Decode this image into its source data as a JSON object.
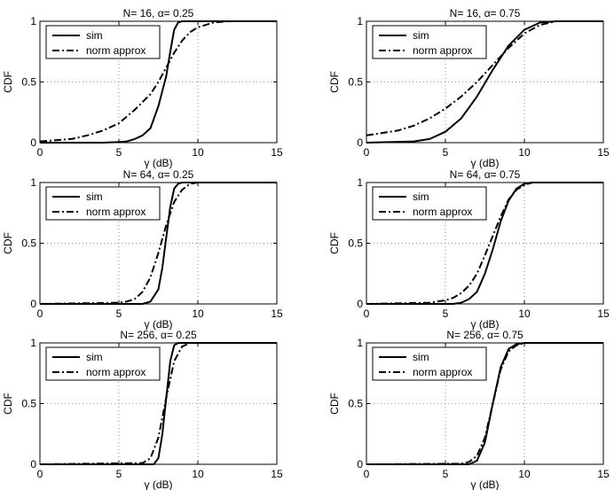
{
  "chart_data": [
    {
      "type": "line",
      "title_prefix": "N= ",
      "N": "16",
      "alpha_sep": ", ",
      "alpha_symbol": "α",
      "alpha_eq": "= ",
      "alpha": "0.25",
      "xlabel": "γ (dB)",
      "ylabel": "CDF",
      "xlim": [
        0,
        15
      ],
      "ylim": [
        0,
        1
      ],
      "xticks": [
        "0",
        "5",
        "10",
        "15"
      ],
      "yticks": [
        "0",
        "0.5",
        "1"
      ],
      "grid": true,
      "legend_position": "top-left",
      "series": [
        {
          "name": "sim",
          "style": "solid",
          "x": [
            0,
            4,
            5,
            5.5,
            6,
            6.5,
            7,
            7.5,
            8,
            8.25,
            8.5,
            8.75,
            9,
            15
          ],
          "y": [
            0,
            0,
            0.005,
            0.01,
            0.03,
            0.06,
            0.12,
            0.3,
            0.55,
            0.75,
            0.93,
            0.99,
            1,
            1
          ]
        },
        {
          "name": "norm approx",
          "style": "dashdot",
          "x": [
            0,
            2,
            3,
            4,
            5,
            6,
            7,
            7.5,
            8,
            8.5,
            9,
            9.5,
            10,
            11,
            12,
            15
          ],
          "y": [
            0.01,
            0.03,
            0.06,
            0.1,
            0.16,
            0.27,
            0.4,
            0.5,
            0.62,
            0.74,
            0.84,
            0.91,
            0.95,
            0.99,
            1,
            1
          ]
        }
      ]
    },
    {
      "type": "line",
      "title_prefix": "N= ",
      "N": "16",
      "alpha_sep": ", ",
      "alpha_symbol": "α",
      "alpha_eq": "= ",
      "alpha": "0.75",
      "xlabel": "γ (dB)",
      "ylabel": "CDF",
      "xlim": [
        0,
        15
      ],
      "ylim": [
        0,
        1
      ],
      "xticks": [
        "0",
        "5",
        "10",
        "15"
      ],
      "yticks": [
        "0",
        "0.5",
        "1"
      ],
      "grid": true,
      "legend_position": "top-left",
      "series": [
        {
          "name": "sim",
          "style": "solid",
          "x": [
            0,
            3,
            4,
            5,
            6,
            7,
            8,
            9,
            10,
            11,
            12,
            15
          ],
          "y": [
            0,
            0.01,
            0.03,
            0.09,
            0.2,
            0.38,
            0.6,
            0.8,
            0.93,
            0.99,
            1,
            1
          ]
        },
        {
          "name": "norm approx",
          "style": "dashdot",
          "x": [
            0,
            2,
            3,
            4,
            5,
            6,
            7,
            8,
            9,
            10,
            11,
            12,
            15
          ],
          "y": [
            0.06,
            0.1,
            0.14,
            0.2,
            0.28,
            0.38,
            0.5,
            0.64,
            0.78,
            0.9,
            0.97,
            1,
            1
          ]
        }
      ]
    },
    {
      "type": "line",
      "title_prefix": "N= ",
      "N": "64",
      "alpha_sep": ", ",
      "alpha_symbol": "α",
      "alpha_eq": "= ",
      "alpha": "0.25",
      "xlabel": "γ (dB)",
      "ylabel": "CDF",
      "xlim": [
        0,
        15
      ],
      "ylim": [
        0,
        1
      ],
      "xticks": [
        "0",
        "5",
        "10",
        "15"
      ],
      "yticks": [
        "0",
        "0.5",
        "1"
      ],
      "grid": true,
      "legend_position": "top-left",
      "series": [
        {
          "name": "sim",
          "style": "solid",
          "x": [
            0,
            6.5,
            7,
            7.5,
            7.75,
            8,
            8.25,
            8.5,
            8.75,
            9,
            15
          ],
          "y": [
            0,
            0,
            0.02,
            0.12,
            0.3,
            0.55,
            0.8,
            0.95,
            0.99,
            1,
            1
          ]
        },
        {
          "name": "norm approx",
          "style": "dashdot",
          "x": [
            0,
            5,
            5.5,
            6,
            6.5,
            7,
            7.5,
            8,
            8.5,
            9,
            9.5,
            10,
            15
          ],
          "y": [
            0,
            0.01,
            0.02,
            0.04,
            0.1,
            0.22,
            0.42,
            0.65,
            0.84,
            0.94,
            0.99,
            1,
            1
          ]
        }
      ]
    },
    {
      "type": "line",
      "title_prefix": "N= ",
      "N": "64",
      "alpha_sep": ", ",
      "alpha_symbol": "α",
      "alpha_eq": "= ",
      "alpha": "0.75",
      "xlabel": "γ (dB)",
      "ylabel": "CDF",
      "xlim": [
        0,
        15
      ],
      "ylim": [
        0,
        1
      ],
      "xticks": [
        "0",
        "5",
        "10",
        "15"
      ],
      "yticks": [
        "0",
        "0.5",
        "1"
      ],
      "grid": true,
      "legend_position": "top-left",
      "series": [
        {
          "name": "sim",
          "style": "solid",
          "x": [
            0,
            5.5,
            6,
            6.5,
            7,
            7.5,
            8,
            8.5,
            9,
            9.5,
            10,
            10.5,
            15
          ],
          "y": [
            0,
            0,
            0.01,
            0.04,
            0.1,
            0.25,
            0.45,
            0.68,
            0.85,
            0.95,
            0.99,
            1,
            1
          ]
        },
        {
          "name": "norm approx",
          "style": "dashdot",
          "x": [
            0,
            4,
            5,
            5.5,
            6,
            6.5,
            7,
            7.5,
            8,
            8.5,
            9,
            9.5,
            10,
            10.5,
            15
          ],
          "y": [
            0,
            0.01,
            0.03,
            0.05,
            0.09,
            0.15,
            0.25,
            0.4,
            0.56,
            0.72,
            0.86,
            0.94,
            0.98,
            1,
            1
          ]
        }
      ]
    },
    {
      "type": "line",
      "title_prefix": "N= ",
      "N": "256",
      "alpha_sep": ", ",
      "alpha_symbol": "α",
      "alpha_eq": "= ",
      "alpha": "0.25",
      "xlabel": "γ (dB)",
      "ylabel": "CDF",
      "xlim": [
        0,
        15
      ],
      "ylim": [
        0,
        1
      ],
      "xticks": [
        "0",
        "5",
        "10",
        "15"
      ],
      "yticks": [
        "0",
        "0.5",
        "1"
      ],
      "grid": true,
      "legend_position": "top-left",
      "series": [
        {
          "name": "sim",
          "style": "solid",
          "x": [
            0,
            7.2,
            7.5,
            7.75,
            8,
            8.25,
            8.5,
            8.75,
            15
          ],
          "y": [
            0,
            0,
            0.05,
            0.25,
            0.55,
            0.85,
            0.98,
            1,
            1
          ]
        },
        {
          "name": "norm approx",
          "style": "dashdot",
          "x": [
            0,
            6.5,
            7,
            7.5,
            8,
            8.5,
            9,
            9.5,
            15
          ],
          "y": [
            0,
            0.01,
            0.05,
            0.22,
            0.55,
            0.85,
            0.97,
            1,
            1
          ]
        }
      ]
    },
    {
      "type": "line",
      "title_prefix": "N= ",
      "N": "256",
      "alpha_sep": ", ",
      "alpha_symbol": "α",
      "alpha_eq": "= ",
      "alpha": "0.75",
      "xlabel": "γ (dB)",
      "ylabel": "CDF",
      "xlim": [
        0,
        15
      ],
      "ylim": [
        0,
        1
      ],
      "xticks": [
        "0",
        "5",
        "10",
        "15"
      ],
      "yticks": [
        "0",
        "0.5",
        "1"
      ],
      "grid": true,
      "legend_position": "top-left",
      "series": [
        {
          "name": "sim",
          "style": "solid",
          "x": [
            0,
            6.5,
            7,
            7.5,
            8,
            8.5,
            9,
            9.5,
            10,
            15
          ],
          "y": [
            0,
            0,
            0.03,
            0.18,
            0.5,
            0.8,
            0.95,
            0.99,
            1,
            1
          ]
        },
        {
          "name": "norm approx",
          "style": "dashdot",
          "x": [
            0,
            6,
            6.5,
            7,
            7.5,
            8,
            8.5,
            9,
            9.5,
            10,
            15
          ],
          "y": [
            0,
            0.005,
            0.02,
            0.07,
            0.22,
            0.5,
            0.78,
            0.93,
            0.98,
            1,
            1
          ]
        }
      ]
    }
  ]
}
